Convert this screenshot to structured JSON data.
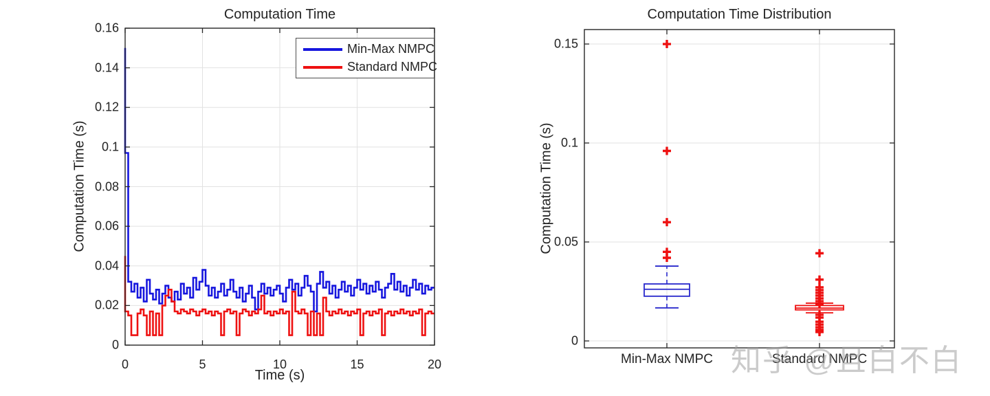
{
  "watermark": {
    "text": "知乎 @且白不白",
    "color_rgba": "rgba(160,160,160,0.55)"
  },
  "style_colors": {
    "axis": "#262626",
    "grid": "#e2e2e2",
    "blue_line": "#1616de",
    "red_line": "#ee1111",
    "outlier": "#ee1111",
    "text": "#242424"
  },
  "chart_data": [
    {
      "type": "line",
      "title": "Computation Time",
      "xlabel": "Time (s)",
      "ylabel": "Computation Time (s)",
      "xlim": [
        0,
        20
      ],
      "ylim": [
        0,
        0.16
      ],
      "x_tick_values": [
        0,
        5,
        10,
        15,
        20
      ],
      "x_tick_labels": [
        "0",
        "5",
        "10",
        "15",
        "20"
      ],
      "y_tick_values": [
        0,
        0.02,
        0.04,
        0.06,
        0.08,
        0.1,
        0.12,
        0.14,
        0.16
      ],
      "y_tick_labels": [
        "0",
        "0.02",
        "0.04",
        "0.06",
        "0.08",
        "0.1",
        "0.12",
        "0.14",
        "0.16"
      ],
      "grid": true,
      "legend_position": "top-right-inside",
      "legend": [
        {
          "label": "Min-Max NMPC",
          "color": "#1616de"
        },
        {
          "label": "Standard NMPC",
          "color": "#ee1111"
        }
      ],
      "series": [
        {
          "name": "Min-Max NMPC",
          "color": "#1616de",
          "t0": 0,
          "dt": 0.2,
          "values": [
            0.15,
            0.097,
            0.032,
            0.027,
            0.031,
            0.024,
            0.029,
            0.022,
            0.033,
            0.026,
            0.023,
            0.028,
            0.021,
            0.026,
            0.03,
            0.024,
            0.022,
            0.027,
            0.023,
            0.031,
            0.026,
            0.029,
            0.024,
            0.034,
            0.028,
            0.032,
            0.038,
            0.03,
            0.025,
            0.029,
            0.024,
            0.027,
            0.031,
            0.025,
            0.028,
            0.033,
            0.027,
            0.024,
            0.029,
            0.022,
            0.026,
            0.03,
            0.024,
            0.018,
            0.027,
            0.031,
            0.026,
            0.029,
            0.025,
            0.028,
            0.03,
            0.026,
            0.022,
            0.029,
            0.033,
            0.028,
            0.031,
            0.025,
            0.029,
            0.035,
            0.03,
            0.027,
            0.017,
            0.031,
            0.037,
            0.029,
            0.032,
            0.026,
            0.03,
            0.024,
            0.028,
            0.032,
            0.027,
            0.03,
            0.025,
            0.029,
            0.033,
            0.028,
            0.031,
            0.026,
            0.03,
            0.027,
            0.032,
            0.028,
            0.024,
            0.029,
            0.031,
            0.036,
            0.028,
            0.032,
            0.027,
            0.03,
            0.025,
            0.029,
            0.033,
            0.028,
            0.031,
            0.026,
            0.03,
            0.028,
            0.029
          ]
        },
        {
          "name": "Standard NMPC",
          "color": "#ee1111",
          "t0": 0,
          "dt": 0.2,
          "values": [
            0.045,
            0.017,
            0.015,
            0.005,
            0.005,
            0.016,
            0.018,
            0.015,
            0.005,
            0.017,
            0.005,
            0.016,
            0.005,
            0.02,
            0.025,
            0.028,
            0.022,
            0.017,
            0.016,
            0.018,
            0.017,
            0.016,
            0.018,
            0.017,
            0.015,
            0.017,
            0.018,
            0.016,
            0.017,
            0.015,
            0.017,
            0.016,
            0.005,
            0.017,
            0.018,
            0.016,
            0.017,
            0.005,
            0.016,
            0.018,
            0.017,
            0.015,
            0.017,
            0.016,
            0.018,
            0.025,
            0.016,
            0.017,
            0.015,
            0.017,
            0.016,
            0.018,
            0.016,
            0.017,
            0.005,
            0.027,
            0.017,
            0.016,
            0.018,
            0.016,
            0.005,
            0.017,
            0.005,
            0.016,
            0.005,
            0.024,
            0.017,
            0.015,
            0.017,
            0.016,
            0.018,
            0.016,
            0.017,
            0.015,
            0.017,
            0.016,
            0.018,
            0.005,
            0.016,
            0.017,
            0.015,
            0.017,
            0.016,
            0.018,
            0.005,
            0.016,
            0.017,
            0.015,
            0.017,
            0.016,
            0.018,
            0.016,
            0.017,
            0.015,
            0.017,
            0.016,
            0.018,
            0.005,
            0.016,
            0.017,
            0.016
          ]
        }
      ]
    },
    {
      "type": "boxplot",
      "title": "Computation Time Distribution",
      "ylabel": "Computation Time (s)",
      "ylim": [
        -0.0035,
        0.1573
      ],
      "y_tick_values": [
        0,
        0.05,
        0.1,
        0.15
      ],
      "y_tick_labels": [
        "0",
        "0.05",
        "0.1",
        "0.15"
      ],
      "grid": true,
      "categories": [
        "Min-Max NMPC",
        "Standard NMPC"
      ],
      "outlier_marker": "+",
      "outlier_color": "#ee1111",
      "boxes": [
        {
          "label": "Min-Max NMPC",
          "color": "#2828cc",
          "q1": 0.0226,
          "median": 0.0261,
          "q3": 0.0288,
          "whisker_low": 0.0167,
          "whisker_high": 0.0378,
          "outliers": [
            0.15,
            0.096,
            0.06,
            0.045,
            0.042
          ]
        },
        {
          "label": "Standard NMPC",
          "color": "#ee1111",
          "q1": 0.0157,
          "median": 0.0166,
          "q3": 0.0179,
          "whisker_low": 0.0142,
          "whisker_high": 0.0191,
          "outliers": [
            0.0443,
            0.031,
            0.0271,
            0.0257,
            0.0243,
            0.0229,
            0.0215,
            0.0201,
            0.0188,
            0.0132,
            0.0118,
            0.0097,
            0.0083,
            0.0069,
            0.0056,
            0.0045
          ]
        }
      ]
    }
  ]
}
